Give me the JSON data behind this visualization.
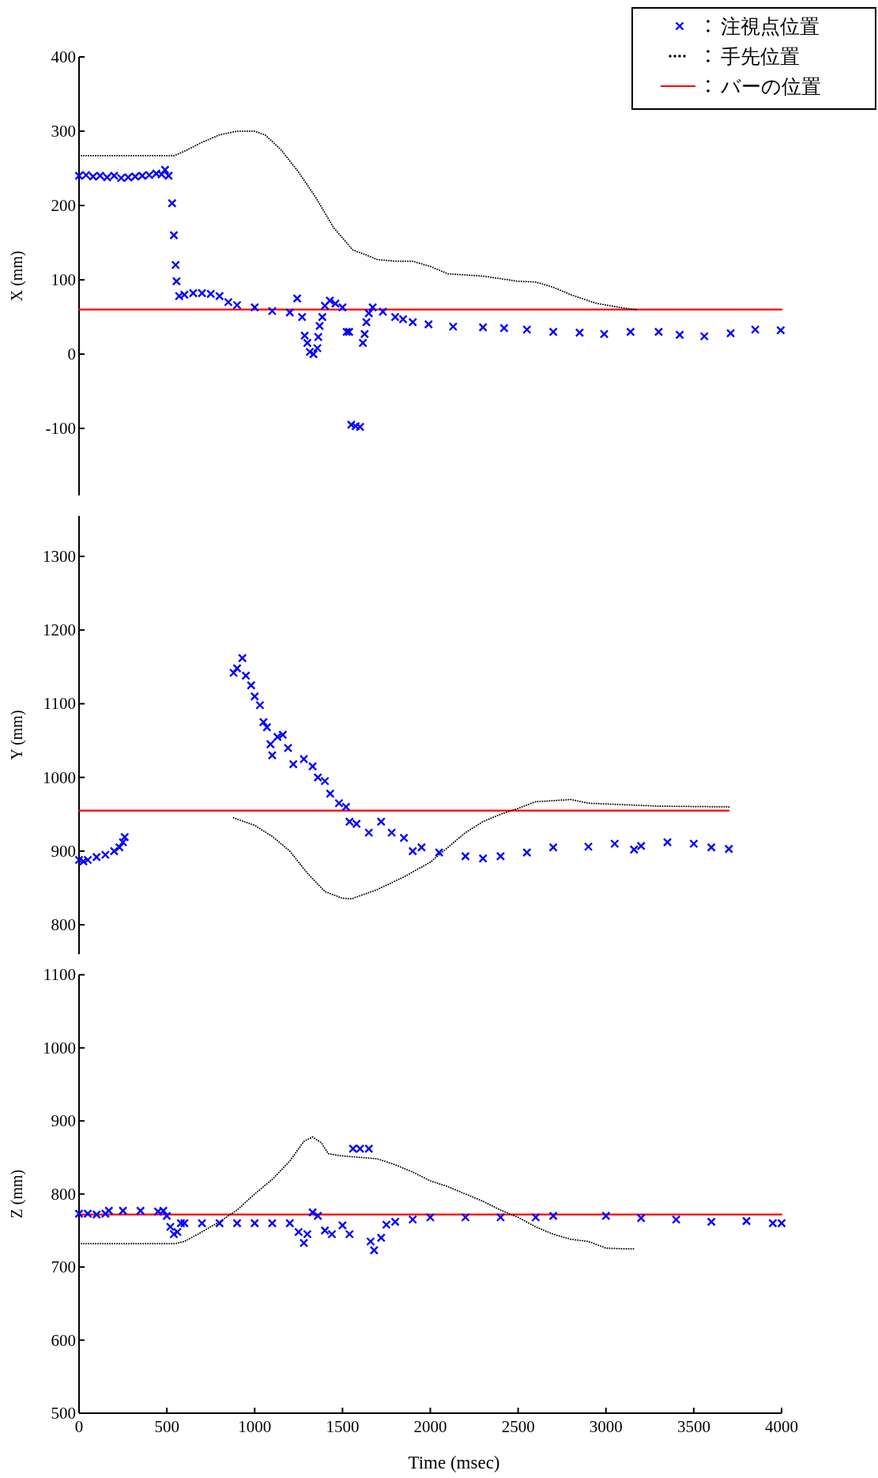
{
  "chart_data": [
    {
      "type": "scatter",
      "ylabel": "X (mm)",
      "xlim": [
        0,
        4000
      ],
      "ylim": [
        -190,
        400
      ],
      "yticks": [
        -100,
        0,
        100,
        200,
        300,
        400
      ],
      "tick_labels": "y",
      "legend": "top right",
      "grid": false,
      "series": [
        {
          "name": "注視点位置",
          "marker": "cross",
          "color": "#0000ff",
          "x": [
            0,
            40,
            80,
            120,
            160,
            200,
            240,
            280,
            320,
            360,
            400,
            440,
            470,
            490,
            510,
            530,
            540,
            550,
            555,
            570,
            600,
            650,
            700,
            750,
            800,
            850,
            900,
            1000,
            1100,
            1200,
            1242,
            1270,
            1285,
            1300,
            1314,
            1335,
            1357,
            1362,
            1370,
            1385,
            1400,
            1428,
            1460,
            1500,
            1524,
            1538,
            1550,
            1575,
            1600,
            1616,
            1626,
            1636,
            1650,
            1672,
            1730,
            1800,
            1845,
            1900,
            1990,
            2130,
            2300,
            2420,
            2550,
            2700,
            2850,
            2990,
            3140,
            3300,
            3420,
            3560,
            3710,
            3850,
            3995
          ],
          "values": [
            240,
            241,
            239,
            240,
            238,
            240,
            237,
            238,
            239,
            240,
            241,
            243,
            242,
            248,
            240,
            203,
            160,
            120,
            98,
            78,
            80,
            82,
            82,
            81,
            78,
            70,
            66,
            63,
            58,
            56,
            75,
            50,
            25,
            15,
            3,
            0,
            8,
            23,
            38,
            50,
            65,
            72,
            68,
            63,
            30,
            30,
            -95,
            -97,
            -98,
            15,
            27,
            43,
            55,
            63,
            57,
            50,
            47,
            43,
            40,
            37,
            36,
            35,
            33,
            30,
            29,
            27,
            30,
            30,
            26,
            24,
            28,
            33,
            32
          ]
        },
        {
          "name": "手先位置",
          "type": "line",
          "marker": "none",
          "line_style": "dotted",
          "color": "#000000",
          "x": [
            0,
            100,
            200,
            300,
            400,
            540,
            600,
            700,
            800,
            900,
            1000,
            1060,
            1150,
            1250,
            1350,
            1450,
            1560,
            1640,
            1700,
            1800,
            1900,
            2000,
            2100,
            2300,
            2500,
            2600,
            2700,
            2800,
            2950,
            3100,
            3170
          ],
          "values": [
            267,
            267,
            267,
            267,
            267,
            267,
            273,
            285,
            295,
            300,
            300,
            295,
            275,
            245,
            210,
            170,
            140,
            133,
            127,
            125,
            125,
            118,
            108,
            105,
            98,
            97,
            90,
            80,
            68,
            62,
            60
          ]
        },
        {
          "name": "バーの位置",
          "type": "line",
          "marker": "none",
          "color": "#ff0000",
          "x": [
            0,
            4000
          ],
          "values": [
            60,
            60
          ]
        }
      ]
    },
    {
      "type": "scatter",
      "ylabel": "Y (mm)",
      "xlim": [
        0,
        4000
      ],
      "ylim": [
        760,
        1355
      ],
      "yticks": [
        800,
        900,
        1000,
        1100,
        1200,
        1300
      ],
      "tick_labels": "y",
      "grid": false,
      "series": [
        {
          "marker": "cross",
          "color": "#0000ff",
          "x": [
            0,
            25,
            50,
            100,
            150,
            200,
            230,
            250,
            260,
            880,
            900,
            930,
            950,
            980,
            1000,
            1030,
            1050,
            1070,
            1090,
            1100,
            1130,
            1160,
            1190,
            1220,
            1280,
            1330,
            1360,
            1400,
            1430,
            1480,
            1520,
            1540,
            1580,
            1650,
            1720,
            1780,
            1850,
            1900,
            1950,
            2050,
            2200,
            2300,
            2400,
            2550,
            2700,
            2900,
            3050,
            3160,
            3200,
            3350,
            3500,
            3600,
            3700
          ],
          "values": [
            888,
            886,
            888,
            892,
            895,
            900,
            905,
            912,
            919,
            1142,
            1148,
            1162,
            1138,
            1125,
            1110,
            1098,
            1075,
            1068,
            1045,
            1030,
            1055,
            1058,
            1040,
            1018,
            1025,
            1015,
            1000,
            995,
            978,
            965,
            960,
            940,
            937,
            925,
            940,
            925,
            918,
            900,
            905,
            898,
            893,
            890,
            893,
            898,
            905,
            906,
            910,
            902,
            907,
            912,
            910,
            905,
            903
          ]
        },
        {
          "type": "line",
          "marker": "none",
          "line_style": "dotted",
          "color": "#000000",
          "x": [
            880,
            1000,
            1100,
            1200,
            1300,
            1400,
            1500,
            1550,
            1700,
            1850,
            2000,
            2100,
            2200,
            2300,
            2400,
            2500,
            2600,
            2800,
            2900,
            3100,
            3300,
            3700
          ],
          "values": [
            945,
            935,
            920,
            900,
            870,
            845,
            836,
            835,
            848,
            865,
            885,
            905,
            925,
            940,
            950,
            958,
            967,
            970,
            965,
            963,
            961,
            960
          ]
        },
        {
          "type": "line",
          "marker": "none",
          "color": "#ff0000",
          "x": [
            0,
            3700
          ],
          "values": [
            955,
            955
          ]
        }
      ]
    },
    {
      "type": "scatter",
      "ylabel": "Z (mm)",
      "xlabel": "Time (msec)",
      "xlim": [
        0,
        4000
      ],
      "ylim": [
        500,
        1100
      ],
      "xticks": [
        0,
        500,
        1000,
        1500,
        2000,
        2500,
        3000,
        3500,
        4000
      ],
      "yticks": [
        500,
        600,
        700,
        800,
        900,
        1000,
        1100
      ],
      "grid": false,
      "series": [
        {
          "marker": "cross",
          "color": "#0000ff",
          "x": [
            0,
            50,
            100,
            150,
            170,
            250,
            350,
            450,
            480,
            500,
            520,
            540,
            560,
            580,
            600,
            700,
            800,
            900,
            1000,
            1100,
            1200,
            1250,
            1280,
            1300,
            1330,
            1360,
            1400,
            1440,
            1500,
            1540,
            1560,
            1600,
            1650,
            1660,
            1680,
            1720,
            1750,
            1800,
            1900,
            2000,
            2200,
            2400,
            2600,
            2700,
            3000,
            3200,
            3400,
            3600,
            3800,
            3950,
            4000
          ],
          "values": [
            773,
            773,
            772,
            773,
            777,
            777,
            777,
            776,
            777,
            770,
            755,
            745,
            748,
            760,
            760,
            760,
            760,
            760,
            760,
            760,
            760,
            748,
            733,
            745,
            775,
            770,
            750,
            745,
            757,
            745,
            862,
            862,
            862,
            735,
            723,
            740,
            758,
            762,
            765,
            768,
            768,
            768,
            768,
            770,
            770,
            767,
            765,
            762,
            763,
            760,
            760
          ]
        },
        {
          "type": "line",
          "marker": "none",
          "line_style": "dotted",
          "color": "#000000",
          "x": [
            0,
            200,
            400,
            550,
            600,
            700,
            800,
            900,
            1000,
            1100,
            1200,
            1280,
            1330,
            1380,
            1420,
            1500,
            1700,
            1800,
            1900,
            2000,
            2100,
            2200,
            2300,
            2400,
            2500,
            2600,
            2700,
            2800,
            2900,
            3000,
            3100,
            3170
          ],
          "values": [
            732,
            732,
            732,
            732,
            735,
            748,
            762,
            778,
            800,
            820,
            845,
            872,
            878,
            870,
            855,
            852,
            848,
            840,
            830,
            818,
            810,
            800,
            790,
            778,
            768,
            755,
            745,
            738,
            735,
            726,
            725,
            725
          ]
        },
        {
          "type": "line",
          "marker": "none",
          "color": "#ff0000",
          "x": [
            0,
            4000
          ],
          "values": [
            772,
            772
          ]
        }
      ]
    }
  ]
}
